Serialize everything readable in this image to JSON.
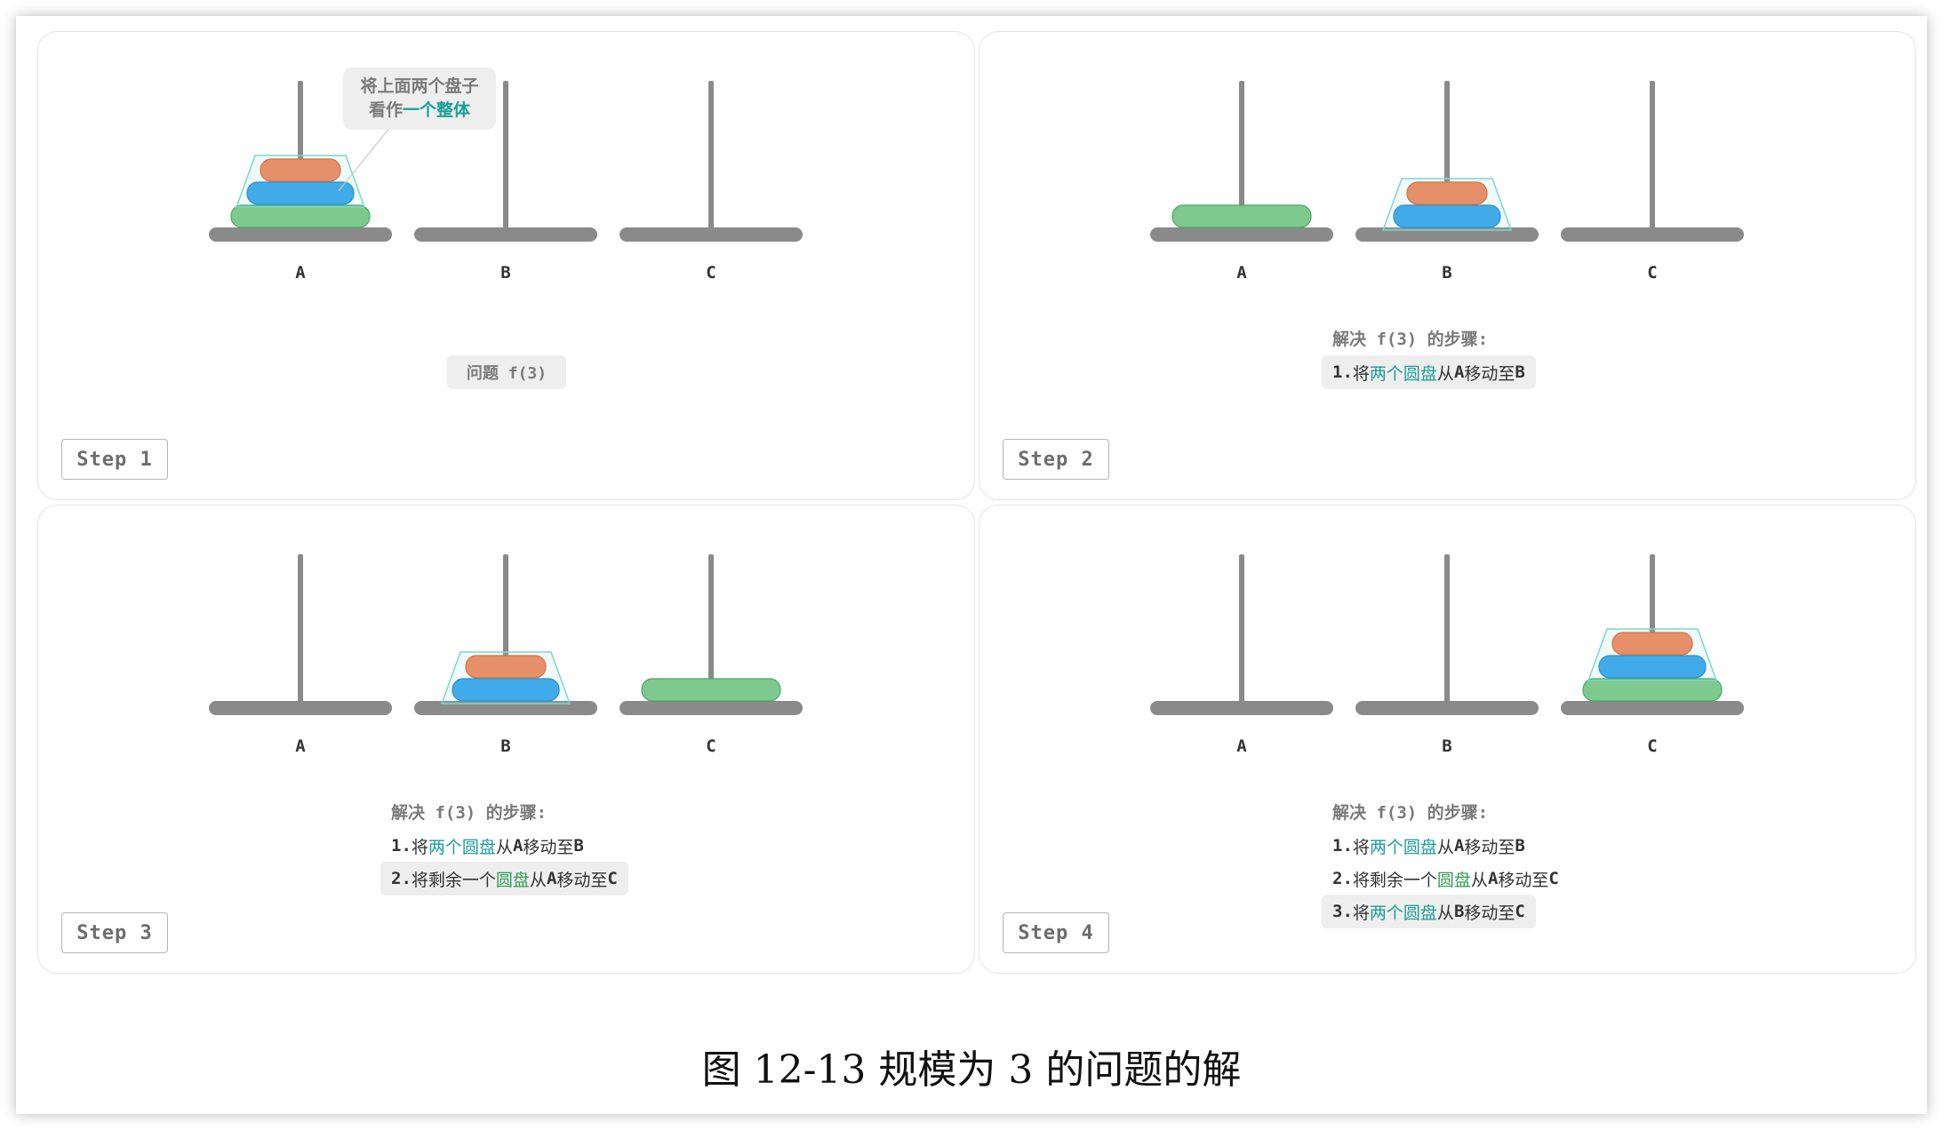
{
  "pegs": [
    "A",
    "B",
    "C"
  ],
  "colors": {
    "rod": "#8a8a8a",
    "disk_small": "#f4875a",
    "disk_medium": "#3aa6ee",
    "disk_large": "#7dc98e",
    "group_outline": "#7fd6cc",
    "highlight_teal": "#1a9e96",
    "highlight_green": "#2f9d50"
  },
  "panels": [
    {
      "step_label": "Step 1",
      "towers": [
        [
          "large",
          "medium",
          "small"
        ],
        [],
        []
      ],
      "group_peg": 0,
      "callout": {
        "line1": "将上面两个盘子",
        "line2_a": "看作",
        "line2_highlight": "一个整体"
      },
      "problem_label": "问题 f(3)"
    },
    {
      "step_label": "Step 2",
      "towers": [
        [
          "large"
        ],
        [
          "medium",
          "small"
        ],
        []
      ],
      "group_peg": 1,
      "steps_title": "解决 f(3) 的步骤:",
      "steps": [
        {
          "idx": "1.",
          "pre": "将",
          "hl": "两个圆盘",
          "hl_color": "teal",
          "from_text": "从",
          "from": "A",
          "move_text": "移动至",
          "to": "B"
        }
      ]
    },
    {
      "step_label": "Step 3",
      "towers": [
        [],
        [
          "medium",
          "small"
        ],
        [
          "large"
        ]
      ],
      "group_peg": 1,
      "steps_title": "解决 f(3) 的步骤:",
      "steps": [
        {
          "idx": "1.",
          "pre": "将",
          "hl": "两个圆盘",
          "hl_color": "teal",
          "from_text": "从",
          "from": "A",
          "move_text": "移动至",
          "to": "B"
        },
        {
          "idx": "2.",
          "pre": "将剩余一个",
          "hl": "圆盘",
          "hl_color": "green",
          "from_text": "从",
          "from": "A",
          "move_text": "移动至",
          "to": "C"
        }
      ]
    },
    {
      "step_label": "Step 4",
      "towers": [
        [],
        [],
        [
          "large",
          "medium",
          "small"
        ]
      ],
      "group_peg": 2,
      "steps_title": "解决 f(3) 的步骤:",
      "steps": [
        {
          "idx": "1.",
          "pre": "将",
          "hl": "两个圆盘",
          "hl_color": "teal",
          "from_text": "从",
          "from": "A",
          "move_text": "移动至",
          "to": "B"
        },
        {
          "idx": "2.",
          "pre": "将剩余一个",
          "hl": "圆盘",
          "hl_color": "green",
          "from_text": "从",
          "from": "A",
          "move_text": "移动至",
          "to": "C"
        },
        {
          "idx": "3.",
          "pre": "将",
          "hl": "两个圆盘",
          "hl_color": "teal",
          "from_text": "从",
          "from": "B",
          "move_text": "移动至",
          "to": "C"
        }
      ]
    }
  ],
  "caption": "图 12-13   规模为 3 的问题的解"
}
